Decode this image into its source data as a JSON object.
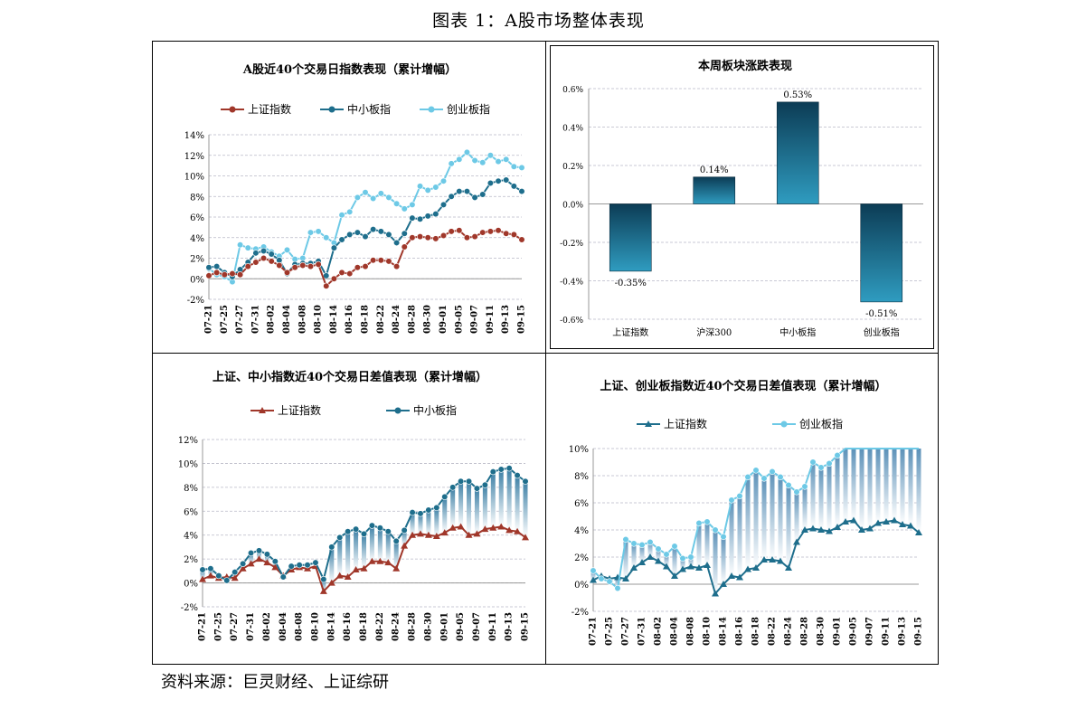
{
  "figure_title": "图表 1：A股市场整体表现",
  "source": "资料来源：巨灵财经、上证综研",
  "colors": {
    "shanghai": "#a0372a",
    "smallmid": "#1e6e8c",
    "chinext": "#6dc9e6",
    "bar_dark": "#0c3c55",
    "bar_light": "#2f9cc0",
    "grid": "#b9b9c8"
  },
  "x_ticks": [
    "07-21",
    "07-25",
    "07-27",
    "07-31",
    "08-02",
    "08-04",
    "08-08",
    "08-10",
    "08-14",
    "08-16",
    "08-18",
    "08-22",
    "08-24",
    "08-28",
    "08-30",
    "09-01",
    "09-05",
    "09-07",
    "09-11",
    "09-13",
    "09-15"
  ],
  "chart_data": [
    {
      "type": "line",
      "title": "A股近40个交易日指数表现（累计增幅）",
      "x": [
        "07-21",
        "07-24",
        "07-25",
        "07-26",
        "07-27",
        "07-28",
        "07-31",
        "08-01",
        "08-02",
        "08-03",
        "08-04",
        "08-07",
        "08-08",
        "08-09",
        "08-10",
        "08-11",
        "08-14",
        "08-15",
        "08-16",
        "08-17",
        "08-18",
        "08-21",
        "08-22",
        "08-23",
        "08-24",
        "08-25",
        "08-28",
        "08-29",
        "08-30",
        "08-31",
        "09-01",
        "09-04",
        "09-05",
        "09-06",
        "09-07",
        "09-08",
        "09-11",
        "09-12",
        "09-13",
        "09-14",
        "09-15"
      ],
      "series": [
        {
          "name": "上证指数",
          "values": [
            0.3,
            0.6,
            0.4,
            0.5,
            0.4,
            1.2,
            1.6,
            2.0,
            1.7,
            1.3,
            0.6,
            1.1,
            1.3,
            1.2,
            1.4,
            -0.7,
            0.0,
            0.6,
            0.5,
            1.1,
            1.2,
            1.8,
            1.8,
            1.7,
            1.2,
            3.1,
            4.0,
            4.1,
            4.0,
            3.9,
            4.2,
            4.6,
            4.7,
            4.0,
            4.1,
            4.5,
            4.6,
            4.7,
            4.4,
            4.3,
            3.8
          ]
        },
        {
          "name": "中小板指",
          "values": [
            1.1,
            1.2,
            0.6,
            0.2,
            0.9,
            1.6,
            2.5,
            2.7,
            2.4,
            1.8,
            0.5,
            1.4,
            1.5,
            1.5,
            1.7,
            0.3,
            3.0,
            3.8,
            4.3,
            4.5,
            4.1,
            4.8,
            4.6,
            4.3,
            3.5,
            4.4,
            5.9,
            5.8,
            6.1,
            6.3,
            7.2,
            8.0,
            8.5,
            8.5,
            7.9,
            8.2,
            9.3,
            9.5,
            9.6,
            9.0,
            8.5
          ]
        },
        {
          "name": "创业板指",
          "values": [
            1.0,
            0.4,
            0.2,
            -0.3,
            3.3,
            3.0,
            2.9,
            3.1,
            2.6,
            2.2,
            2.8,
            1.9,
            2.0,
            4.5,
            4.6,
            4.0,
            3.5,
            6.2,
            6.5,
            7.9,
            8.4,
            7.8,
            8.3,
            7.9,
            7.3,
            6.8,
            7.2,
            9.0,
            8.6,
            8.9,
            9.5,
            11.2,
            11.6,
            12.3,
            11.5,
            11.3,
            12.0,
            11.4,
            11.6,
            10.9,
            10.8
          ]
        }
      ],
      "ylim": [
        -2,
        14
      ]
    },
    {
      "type": "bar",
      "title": "本周板块涨跌表现",
      "categories": [
        "上证指数",
        "沪深300",
        "中小板指",
        "创业板指"
      ],
      "values": [
        -0.35,
        0.14,
        0.53,
        -0.51
      ],
      "data_labels": [
        "-0.35%",
        "0.14%",
        "0.53%",
        "-0.51%"
      ],
      "ylim": [
        -0.6,
        0.6
      ]
    },
    {
      "type": "line",
      "title": "上证、中小指数近40个交易日差值表现（累计增幅）",
      "series": [
        {
          "name": "上证指数"
        },
        {
          "name": "中小板指"
        }
      ],
      "ylim": [
        -2,
        12
      ]
    },
    {
      "type": "line",
      "title": "上证、创业板指数近40个交易日差值表现（累计增幅）",
      "series": [
        {
          "name": "上证指数"
        },
        {
          "name": "创业板指"
        }
      ],
      "ylim": [
        -2,
        10
      ]
    }
  ]
}
